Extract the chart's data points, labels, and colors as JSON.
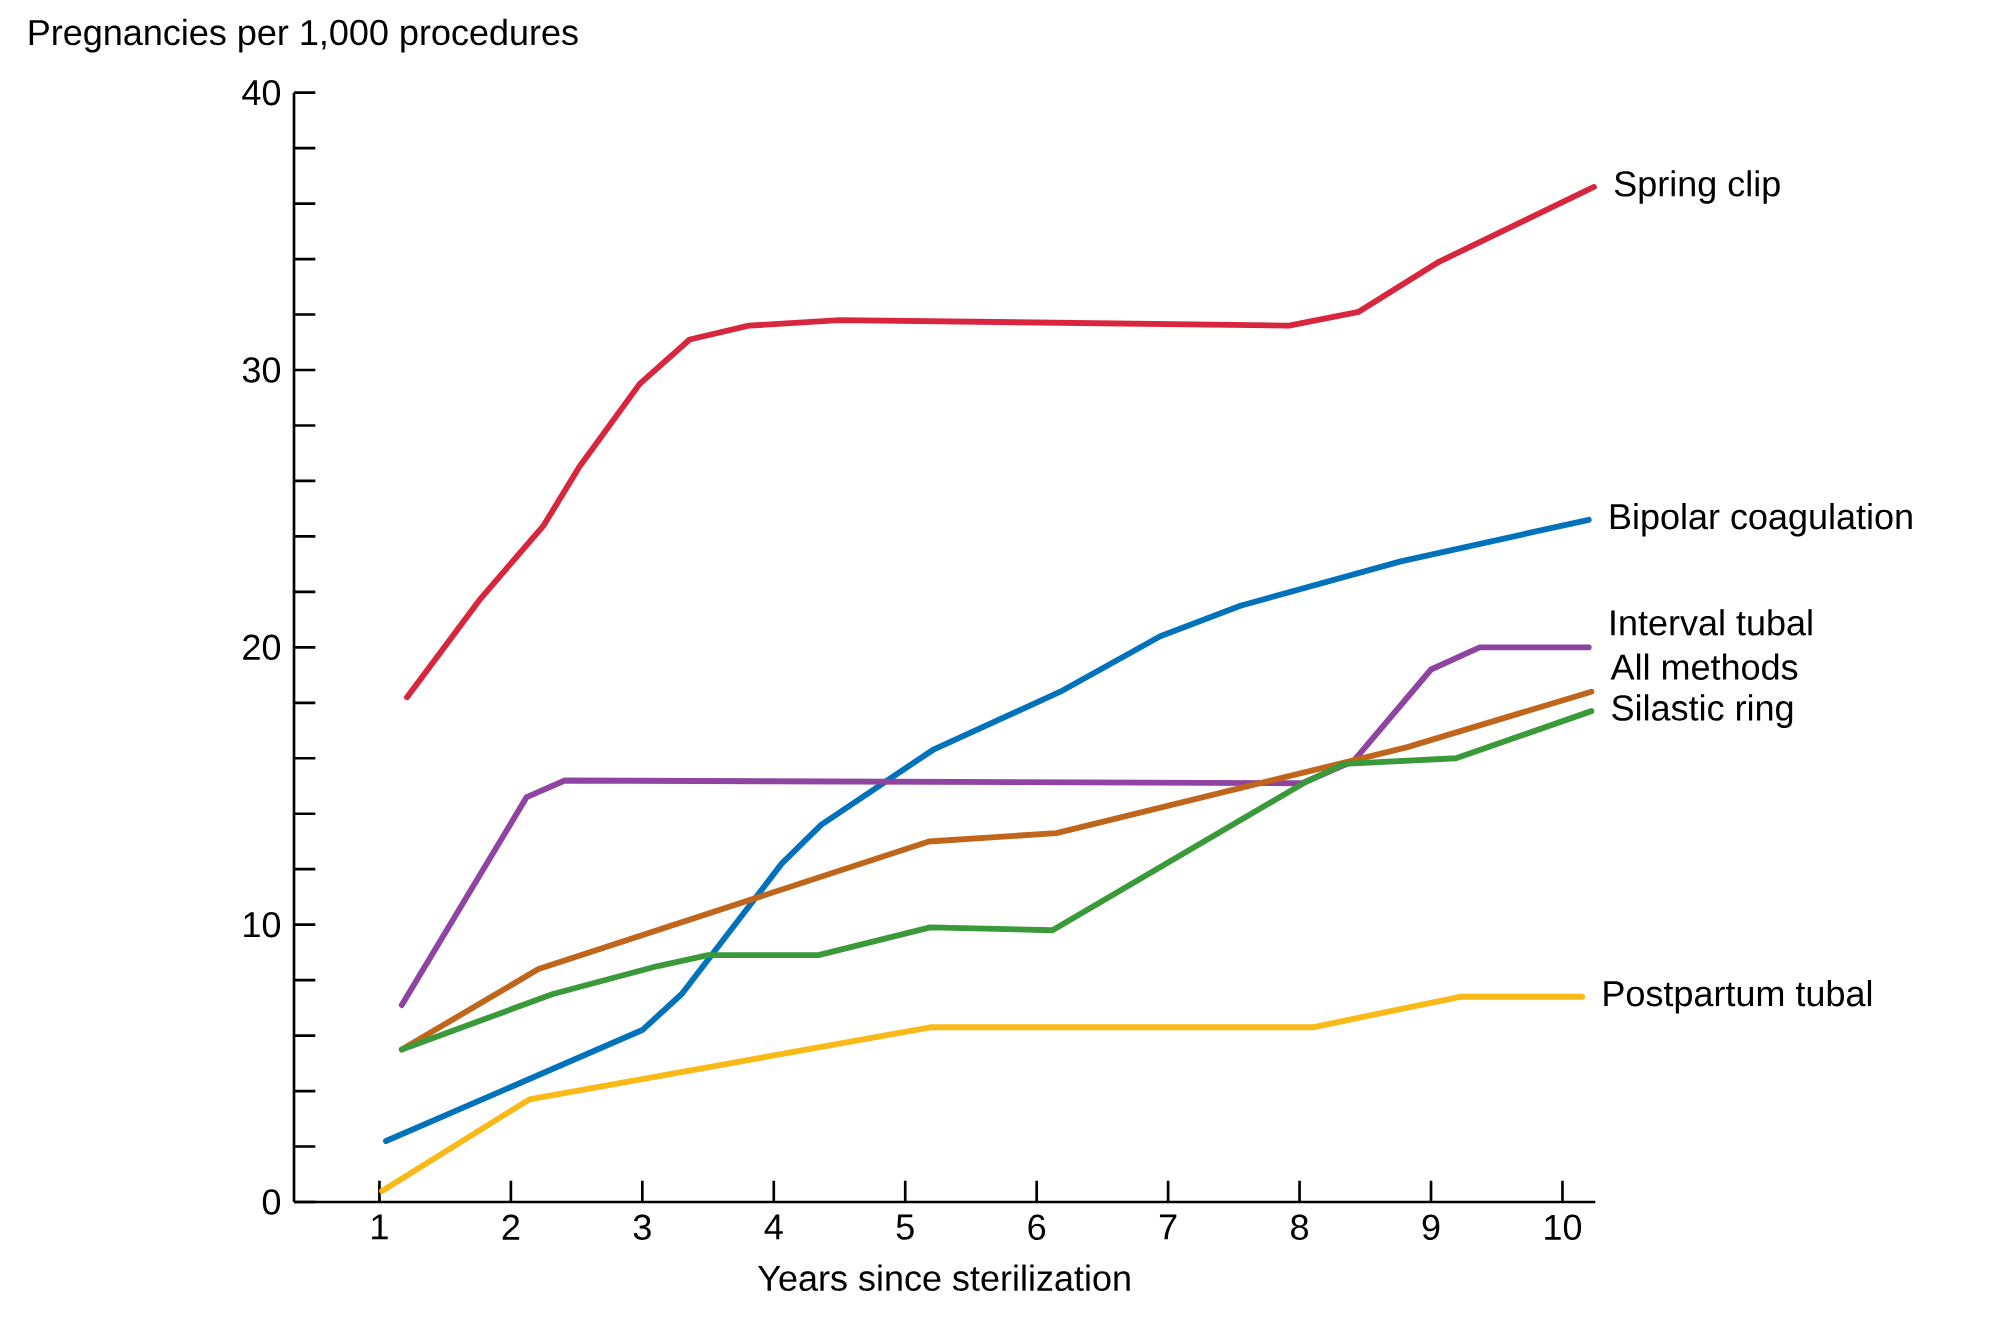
{
  "chart_data": {
    "type": "line",
    "ylabel": "Pregnancies per 1,000 procedures",
    "xlabel": "Years since sterilization",
    "xlim": [
      0.35,
      10.25
    ],
    "xticks": [
      1,
      2,
      3,
      4,
      5,
      6,
      7,
      8,
      9,
      10
    ],
    "ylim": [
      0,
      40
    ],
    "yticks": [
      0,
      {
        "value": 2,
        "label": null
      },
      {
        "value": 4,
        "label": null
      },
      {
        "value": 6,
        "label": null
      },
      {
        "value": 8,
        "label": null
      },
      10,
      {
        "value": 12,
        "label": null
      },
      {
        "value": 14,
        "label": null
      },
      {
        "value": 16,
        "label": null
      },
      {
        "value": 18,
        "label": null
      },
      20,
      {
        "value": 22,
        "label": null
      },
      {
        "value": 24,
        "label": null
      },
      {
        "value": 26,
        "label": null
      },
      {
        "value": 28,
        "label": null
      },
      30,
      {
        "value": 32,
        "label": null
      },
      {
        "value": 34,
        "label": null
      },
      {
        "value": 36,
        "label": null
      },
      {
        "value": 38,
        "label": null
      },
      40
    ],
    "series": [
      {
        "name": "Spring clip",
        "color": "#d7263d",
        "x": [
          1.21,
          1.76,
          2.25,
          2.52,
          2.98,
          3.36,
          3.81,
          4.5,
          7.92,
          8.45,
          9.06,
          10.24
        ],
        "values": [
          18.2,
          21.7,
          24.4,
          26.5,
          29.5,
          31.1,
          31.6,
          31.8,
          31.6,
          32.1,
          33.9,
          36.6
        ]
      },
      {
        "name": "Bipolar coagulation",
        "color": "#0072bc",
        "x": [
          1.05,
          3.0,
          3.3,
          4.06,
          4.36,
          5.21,
          6.18,
          6.94,
          7.55,
          8.77,
          10.2
        ],
        "values": [
          2.2,
          6.2,
          7.5,
          12.2,
          13.6,
          16.3,
          18.4,
          20.4,
          21.5,
          23.1,
          24.6
        ]
      },
      {
        "name": "Interval tubal",
        "color": "#8e44a0",
        "x": [
          1.17,
          2.12,
          2.41,
          8.02,
          8.41,
          9.0,
          9.37,
          10.2
        ],
        "values": [
          7.1,
          14.6,
          15.2,
          15.1,
          15.9,
          19.2,
          20.0,
          20.0
        ]
      },
      {
        "name": "All methods",
        "color": "#c0661c",
        "x": [
          1.17,
          2.21,
          5.18,
          6.15,
          8.82,
          10.22
        ],
        "values": [
          5.5,
          8.4,
          13.0,
          13.3,
          16.4,
          18.4
        ]
      },
      {
        "name": "Silastic ring",
        "color": "#3a9a3a",
        "x": [
          1.17,
          2.32,
          3.11,
          3.5,
          4.34,
          5.19,
          6.12,
          8.03,
          8.34,
          9.19,
          10.22
        ],
        "values": [
          5.5,
          7.5,
          8.5,
          8.9,
          8.9,
          9.9,
          9.8,
          15.1,
          15.8,
          16.0,
          17.7
        ]
      },
      {
        "name": "Postpartum tubal",
        "color": "#fbb917",
        "x": [
          1.02,
          2.14,
          5.19,
          8.1,
          9.22,
          10.15
        ],
        "values": [
          0.4,
          3.7,
          6.3,
          6.3,
          7.4,
          7.4
        ]
      }
    ]
  }
}
